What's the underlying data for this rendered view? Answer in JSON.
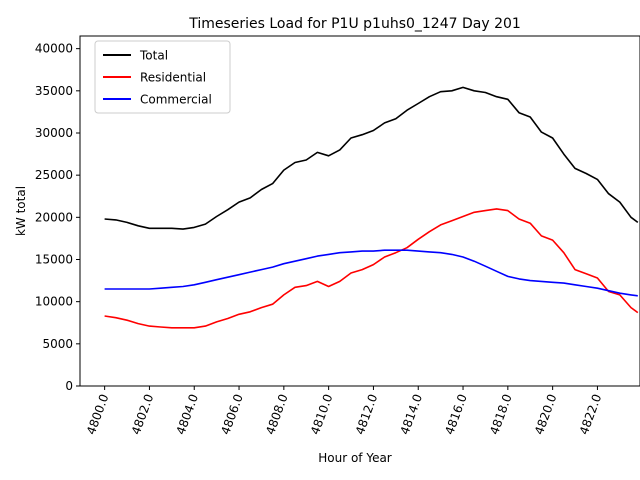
{
  "chart_data": {
    "type": "line",
    "title": "Timeseries Load for P1U p1uhs0_1247  Day 201",
    "xlabel": "Hour of Year",
    "ylabel": "kW total",
    "xlim": [
      4798.9,
      4823.9
    ],
    "ylim": [
      0,
      41500
    ],
    "xticks": [
      4800,
      4802,
      4804,
      4806,
      4808,
      4810,
      4812,
      4814,
      4816,
      4818,
      4820,
      4822
    ],
    "xtick_labels": [
      "4800.0",
      "4802.0",
      "4804.0",
      "4806.0",
      "4808.0",
      "4810.0",
      "4812.0",
      "4814.0",
      "4816.0",
      "4818.0",
      "4820.0",
      "4822.0"
    ],
    "yticks": [
      0,
      5000,
      10000,
      15000,
      20000,
      25000,
      30000,
      35000,
      40000
    ],
    "ytick_labels": [
      "0",
      "5000",
      "10000",
      "15000",
      "20000",
      "25000",
      "30000",
      "35000",
      "40000"
    ],
    "legend_position": "top-left",
    "grid": false,
    "series": [
      {
        "name": "Total",
        "color": "#000000",
        "x": [
          4800.0,
          4800.5,
          4801.0,
          4801.5,
          4802.0,
          4802.5,
          4803.0,
          4803.5,
          4804.0,
          4804.5,
          4805.0,
          4805.5,
          4806.0,
          4806.5,
          4807.0,
          4807.5,
          4808.0,
          4808.5,
          4809.0,
          4809.5,
          4810.0,
          4810.5,
          4811.0,
          4811.5,
          4812.0,
          4812.5,
          4813.0,
          4813.5,
          4814.0,
          4814.5,
          4815.0,
          4815.5,
          4816.0,
          4816.5,
          4817.0,
          4817.5,
          4818.0,
          4818.5,
          4819.0,
          4819.5,
          4820.0,
          4820.5,
          4821.0,
          4821.5,
          4822.0,
          4822.5,
          4823.0,
          4823.5,
          4823.8
        ],
        "values": [
          19800,
          19700,
          19400,
          19000,
          18700,
          18700,
          18700,
          18600,
          18800,
          19200,
          20100,
          20900,
          21800,
          22300,
          23300,
          24000,
          25600,
          26500,
          26800,
          27700,
          27300,
          28000,
          29400,
          29800,
          30300,
          31200,
          31700,
          32700,
          33500,
          34300,
          34900,
          35000,
          35400,
          35000,
          34800,
          34300,
          34000,
          32400,
          31900,
          30100,
          29400,
          27500,
          25800,
          25200,
          24500,
          22800,
          21800,
          20000,
          19400
        ]
      },
      {
        "name": "Residential",
        "color": "#ff0000",
        "x": [
          4800.0,
          4800.5,
          4801.0,
          4801.5,
          4802.0,
          4802.5,
          4803.0,
          4803.5,
          4804.0,
          4804.5,
          4805.0,
          4805.5,
          4806.0,
          4806.5,
          4807.0,
          4807.5,
          4808.0,
          4808.5,
          4809.0,
          4809.5,
          4810.0,
          4810.5,
          4811.0,
          4811.5,
          4812.0,
          4812.5,
          4813.0,
          4813.5,
          4814.0,
          4814.5,
          4815.0,
          4815.5,
          4816.0,
          4816.5,
          4817.0,
          4817.5,
          4818.0,
          4818.5,
          4819.0,
          4819.5,
          4820.0,
          4820.5,
          4821.0,
          4821.5,
          4822.0,
          4822.5,
          4823.0,
          4823.5,
          4823.8
        ],
        "values": [
          8300,
          8100,
          7800,
          7400,
          7100,
          7000,
          6900,
          6900,
          6900,
          7100,
          7600,
          8000,
          8500,
          8800,
          9300,
          9700,
          10800,
          11700,
          11900,
          12400,
          11800,
          12400,
          13400,
          13800,
          14400,
          15300,
          15800,
          16400,
          17400,
          18300,
          19100,
          19600,
          20100,
          20600,
          20800,
          21000,
          20800,
          19800,
          19300,
          17800,
          17300,
          15800,
          13800,
          13300,
          12800,
          11200,
          10800,
          9300,
          8700
        ]
      },
      {
        "name": "Commercial",
        "color": "#0000ff",
        "x": [
          4800.0,
          4800.5,
          4801.0,
          4801.5,
          4802.0,
          4802.5,
          4803.0,
          4803.5,
          4804.0,
          4804.5,
          4805.0,
          4805.5,
          4806.0,
          4806.5,
          4807.0,
          4807.5,
          4808.0,
          4808.5,
          4809.0,
          4809.5,
          4810.0,
          4810.5,
          4811.0,
          4811.5,
          4812.0,
          4812.5,
          4813.0,
          4813.5,
          4814.0,
          4814.5,
          4815.0,
          4815.5,
          4816.0,
          4816.5,
          4817.0,
          4817.5,
          4818.0,
          4818.5,
          4819.0,
          4819.5,
          4820.0,
          4820.5,
          4821.0,
          4821.5,
          4822.0,
          4822.5,
          4823.0,
          4823.5,
          4823.8
        ],
        "values": [
          11500,
          11500,
          11500,
          11500,
          11500,
          11600,
          11700,
          11800,
          12000,
          12300,
          12600,
          12900,
          13200,
          13500,
          13800,
          14100,
          14500,
          14800,
          15100,
          15400,
          15600,
          15800,
          15900,
          16000,
          16000,
          16100,
          16100,
          16100,
          16000,
          15900,
          15800,
          15600,
          15300,
          14800,
          14200,
          13600,
          13000,
          12700,
          12500,
          12400,
          12300,
          12200,
          12000,
          11800,
          11600,
          11300,
          11000,
          10800,
          10700
        ]
      }
    ]
  }
}
